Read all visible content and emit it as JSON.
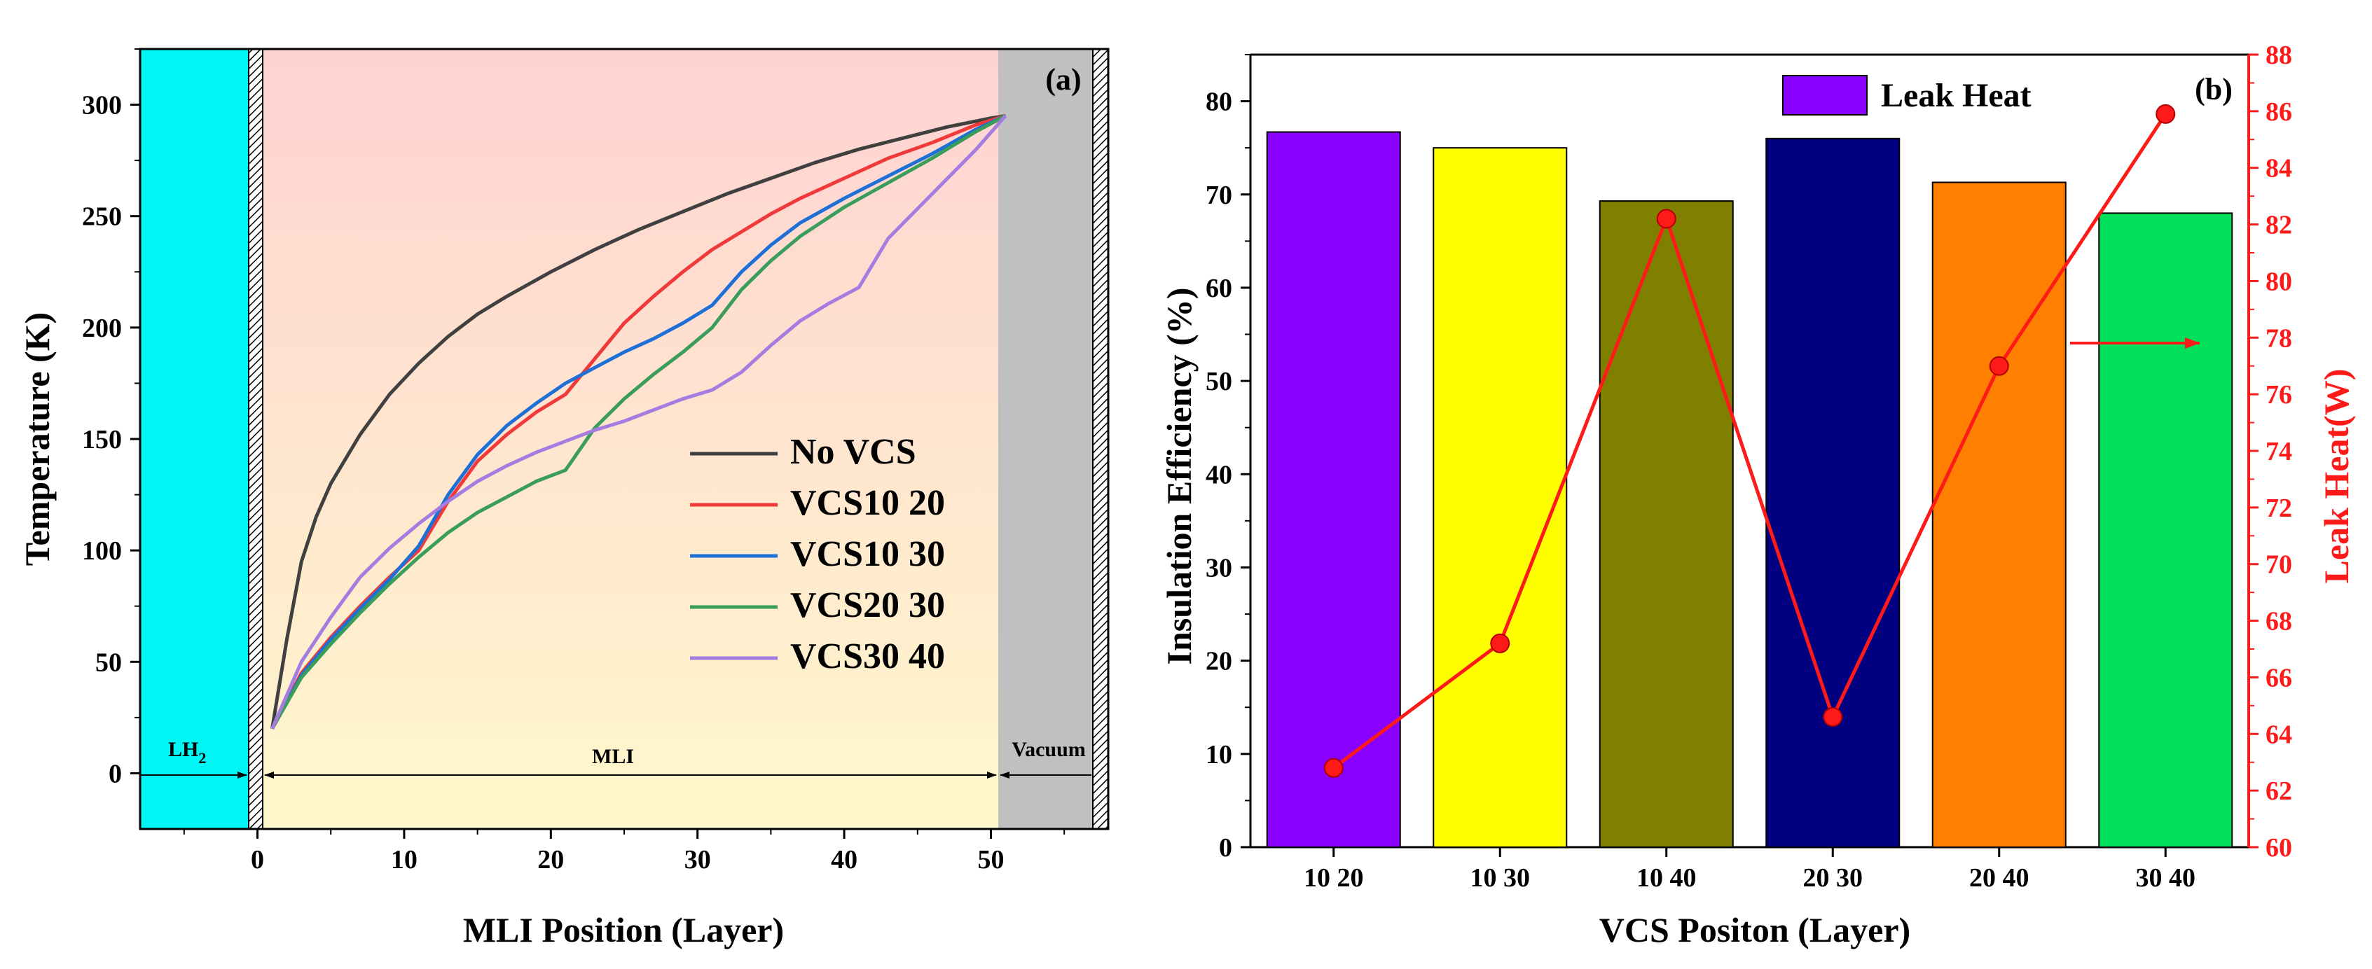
{
  "chart_data": [
    {
      "type": "line",
      "panel_label": "(a)",
      "xlabel": "MLI Position (Layer)",
      "ylabel": "Temperature (K)",
      "xlim": [
        -8,
        58
      ],
      "ylim": [
        -25,
        325
      ],
      "xticks": [
        0,
        10,
        20,
        30,
        40,
        50
      ],
      "yticks": [
        0,
        50,
        100,
        150,
        200,
        250,
        300
      ],
      "regions": [
        {
          "name": "lh2",
          "x_from": -8,
          "x_to": 0,
          "color": "#00f5f5"
        },
        {
          "name": "mli",
          "x_from": 1,
          "x_to": 51,
          "color_top": "#ffd2d2",
          "color_bottom": "#fff8cc"
        },
        {
          "name": "vacuum",
          "x_from": 51,
          "x_to": 58,
          "color": "#c0c0c0"
        }
      ],
      "walls": [
        {
          "x_from": 0,
          "x_to": 1
        },
        {
          "x_from": 57.2,
          "x_to": 58
        }
      ],
      "annotations": {
        "lh2": "LH",
        "lh2_sub": "2",
        "mli": "MLI",
        "vacuum": "Vacuum"
      },
      "series": [
        {
          "name": "No VCS",
          "color": "#404040",
          "x": [
            1,
            2,
            3,
            4,
            5,
            7,
            9,
            11,
            13,
            15,
            17,
            20,
            23,
            26,
            29,
            32,
            35,
            38,
            41,
            44,
            47,
            50,
            51
          ],
          "y": [
            20,
            60,
            95,
            115,
            130,
            152,
            170,
            184,
            196,
            206,
            214,
            225,
            235,
            244,
            252,
            260,
            267,
            274,
            280,
            285,
            290,
            294,
            295
          ]
        },
        {
          "name": "VCS10 20",
          "color": "#f03a3a",
          "x": [
            1,
            3,
            5,
            7,
            9,
            11,
            13,
            15,
            17,
            19,
            21,
            23,
            25,
            27,
            29,
            31,
            33,
            35,
            37,
            40,
            43,
            46,
            49,
            51
          ],
          "y": [
            20,
            45,
            61,
            75,
            88,
            100,
            122,
            140,
            152,
            162,
            170,
            186,
            202,
            214,
            225,
            235,
            243,
            251,
            258,
            267,
            276,
            283,
            291,
            295
          ]
        },
        {
          "name": "VCS10 30",
          "color": "#1e6fd6",
          "x": [
            1,
            3,
            5,
            7,
            9,
            11,
            13,
            15,
            17,
            19,
            21,
            23,
            25,
            27,
            29,
            31,
            33,
            35,
            37,
            40,
            43,
            46,
            49,
            51
          ],
          "y": [
            20,
            44,
            60,
            74,
            87,
            102,
            125,
            143,
            156,
            166,
            175,
            182,
            189,
            195,
            202,
            210,
            225,
            237,
            247,
            258,
            268,
            278,
            289,
            295
          ]
        },
        {
          "name": "VCS20 30",
          "color": "#3a9e5a",
          "x": [
            1,
            3,
            5,
            7,
            9,
            11,
            13,
            15,
            17,
            19,
            21,
            23,
            25,
            27,
            29,
            31,
            33,
            35,
            37,
            40,
            43,
            46,
            49,
            51
          ],
          "y": [
            20,
            43,
            58,
            72,
            85,
            97,
            108,
            117,
            124,
            131,
            136,
            155,
            168,
            179,
            189,
            200,
            217,
            230,
            241,
            254,
            265,
            276,
            288,
            295
          ]
        },
        {
          "name": "VCS30 40",
          "color": "#a57de0",
          "x": [
            1,
            3,
            5,
            7,
            9,
            11,
            13,
            15,
            17,
            19,
            21,
            23,
            25,
            27,
            29,
            31,
            33,
            35,
            37,
            39,
            41,
            43,
            46,
            49,
            51
          ],
          "y": [
            20,
            50,
            70,
            88,
            101,
            112,
            122,
            131,
            138,
            144,
            149,
            154,
            158,
            163,
            168,
            172,
            180,
            192,
            203,
            211,
            218,
            240,
            260,
            280,
            295
          ]
        }
      ]
    },
    {
      "type": "bar",
      "panel_label": "(b)",
      "xlabel": "VCS Positon (Layer)",
      "ylabel": "Insulation Efficiency (%)",
      "y2label": "Leak Heat(W)",
      "ylim": [
        0,
        85
      ],
      "y2lim": [
        60,
        88
      ],
      "yticks": [
        0,
        10,
        20,
        30,
        40,
        50,
        60,
        70,
        80
      ],
      "y2ticks": [
        60,
        62,
        64,
        66,
        68,
        70,
        72,
        74,
        76,
        78,
        80,
        82,
        84,
        86,
        88
      ],
      "categories": [
        "10 20",
        "10 30",
        "10 40",
        "20 30",
        "20 40",
        "30 40"
      ],
      "bar_colors": [
        "#8a00ff",
        "#ffff00",
        "#808000",
        "#000080",
        "#ff8000",
        "#00e05a"
      ],
      "series": [
        {
          "name": "Insulation Efficiency",
          "axis": "left",
          "values": [
            76.7,
            75.0,
            69.3,
            76.0,
            71.3,
            68.0
          ]
        },
        {
          "name": "Leak Heat",
          "axis": "right",
          "color": "#ff1a1a",
          "values": [
            62.8,
            67.2,
            82.2,
            64.6,
            77.0,
            85.9
          ]
        }
      ],
      "legend": {
        "label": "Leak Heat",
        "color": "#8a00ff",
        "position": "top-center"
      },
      "axis_color_right": "#ff1a1a"
    }
  ]
}
